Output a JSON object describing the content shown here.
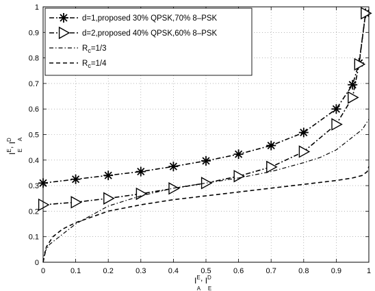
{
  "chart_data": {
    "type": "line",
    "xlim": [
      0,
      1
    ],
    "ylim": [
      0,
      1
    ],
    "xticks": [
      "0",
      "0.1",
      "0.2",
      "0.3",
      "0.4",
      "0.5",
      "0.6",
      "0.7",
      "0.8",
      "0.9",
      "1"
    ],
    "yticks": [
      "0",
      "0.1",
      "0.2",
      "0.3",
      "0.4",
      "0.5",
      "0.6",
      "0.7",
      "0.8",
      "0.9",
      "1"
    ],
    "xlabel": {
      "base_left": "I",
      "sup_left": "E",
      "sub_left": "A",
      "sep": ", ",
      "base_right": "I",
      "sup_right": "D",
      "sub_right": "E"
    },
    "ylabel": {
      "base_left": "I",
      "sup_left": "E",
      "sub_left": "E",
      "sep": ", ",
      "base_right": "I",
      "sup_right": "D",
      "sub_right": "A"
    },
    "grid": true,
    "legend_position": "top-left",
    "series": [
      {
        "name": "d=1,proposed 30% QPSK,70% 8–PSK",
        "line_style": "dash-dot",
        "marker": "asterisk",
        "color": "#000000",
        "x": [
          0,
          0.1,
          0.2,
          0.3,
          0.4,
          0.5,
          0.6,
          0.7,
          0.8,
          0.9,
          0.95,
          0.97,
          0.99
        ],
        "y": [
          0.31,
          0.325,
          0.34,
          0.355,
          0.375,
          0.397,
          0.423,
          0.457,
          0.508,
          0.6,
          0.695,
          0.78,
          0.975
        ]
      },
      {
        "name": "d=2,proposed 40% QPSK,60% 8–PSK",
        "line_style": "dash-dot",
        "marker": "triangle-right",
        "color": "#000000",
        "x": [
          0,
          0.1,
          0.2,
          0.3,
          0.4,
          0.5,
          0.6,
          0.7,
          0.8,
          0.9,
          0.95,
          0.97,
          0.99
        ],
        "y": [
          0.225,
          0.235,
          0.25,
          0.268,
          0.289,
          0.31,
          0.337,
          0.373,
          0.433,
          0.54,
          0.645,
          0.775,
          0.975
        ]
      },
      {
        "name_parts": {
          "base": "R",
          "sub": "c",
          "rest": "=1/3"
        },
        "line_style": "dash-dot-thin",
        "marker": "none",
        "color": "#000000",
        "x": [
          0,
          0.005,
          0.02,
          0.05,
          0.1,
          0.2,
          0.3,
          0.4,
          0.5,
          0.6,
          0.7,
          0.8,
          0.85,
          0.9,
          0.95,
          0.98,
          1.0
        ],
        "y": [
          0,
          0.04,
          0.07,
          0.1,
          0.15,
          0.22,
          0.26,
          0.29,
          0.31,
          0.33,
          0.355,
          0.39,
          0.41,
          0.44,
          0.49,
          0.52,
          0.56
        ]
      },
      {
        "name_parts": {
          "base": "R",
          "sub": "c",
          "rest": "=1/4"
        },
        "line_style": "dashed",
        "marker": "none",
        "color": "#000000",
        "x": [
          0,
          0.01,
          0.03,
          0.06,
          0.1,
          0.2,
          0.3,
          0.4,
          0.5,
          0.6,
          0.7,
          0.8,
          0.9,
          0.95,
          0.98,
          0.995,
          1.0
        ],
        "y": [
          0,
          0.06,
          0.1,
          0.13,
          0.155,
          0.2,
          0.225,
          0.245,
          0.26,
          0.275,
          0.29,
          0.305,
          0.32,
          0.33,
          0.34,
          0.355,
          0.375
        ]
      }
    ]
  }
}
